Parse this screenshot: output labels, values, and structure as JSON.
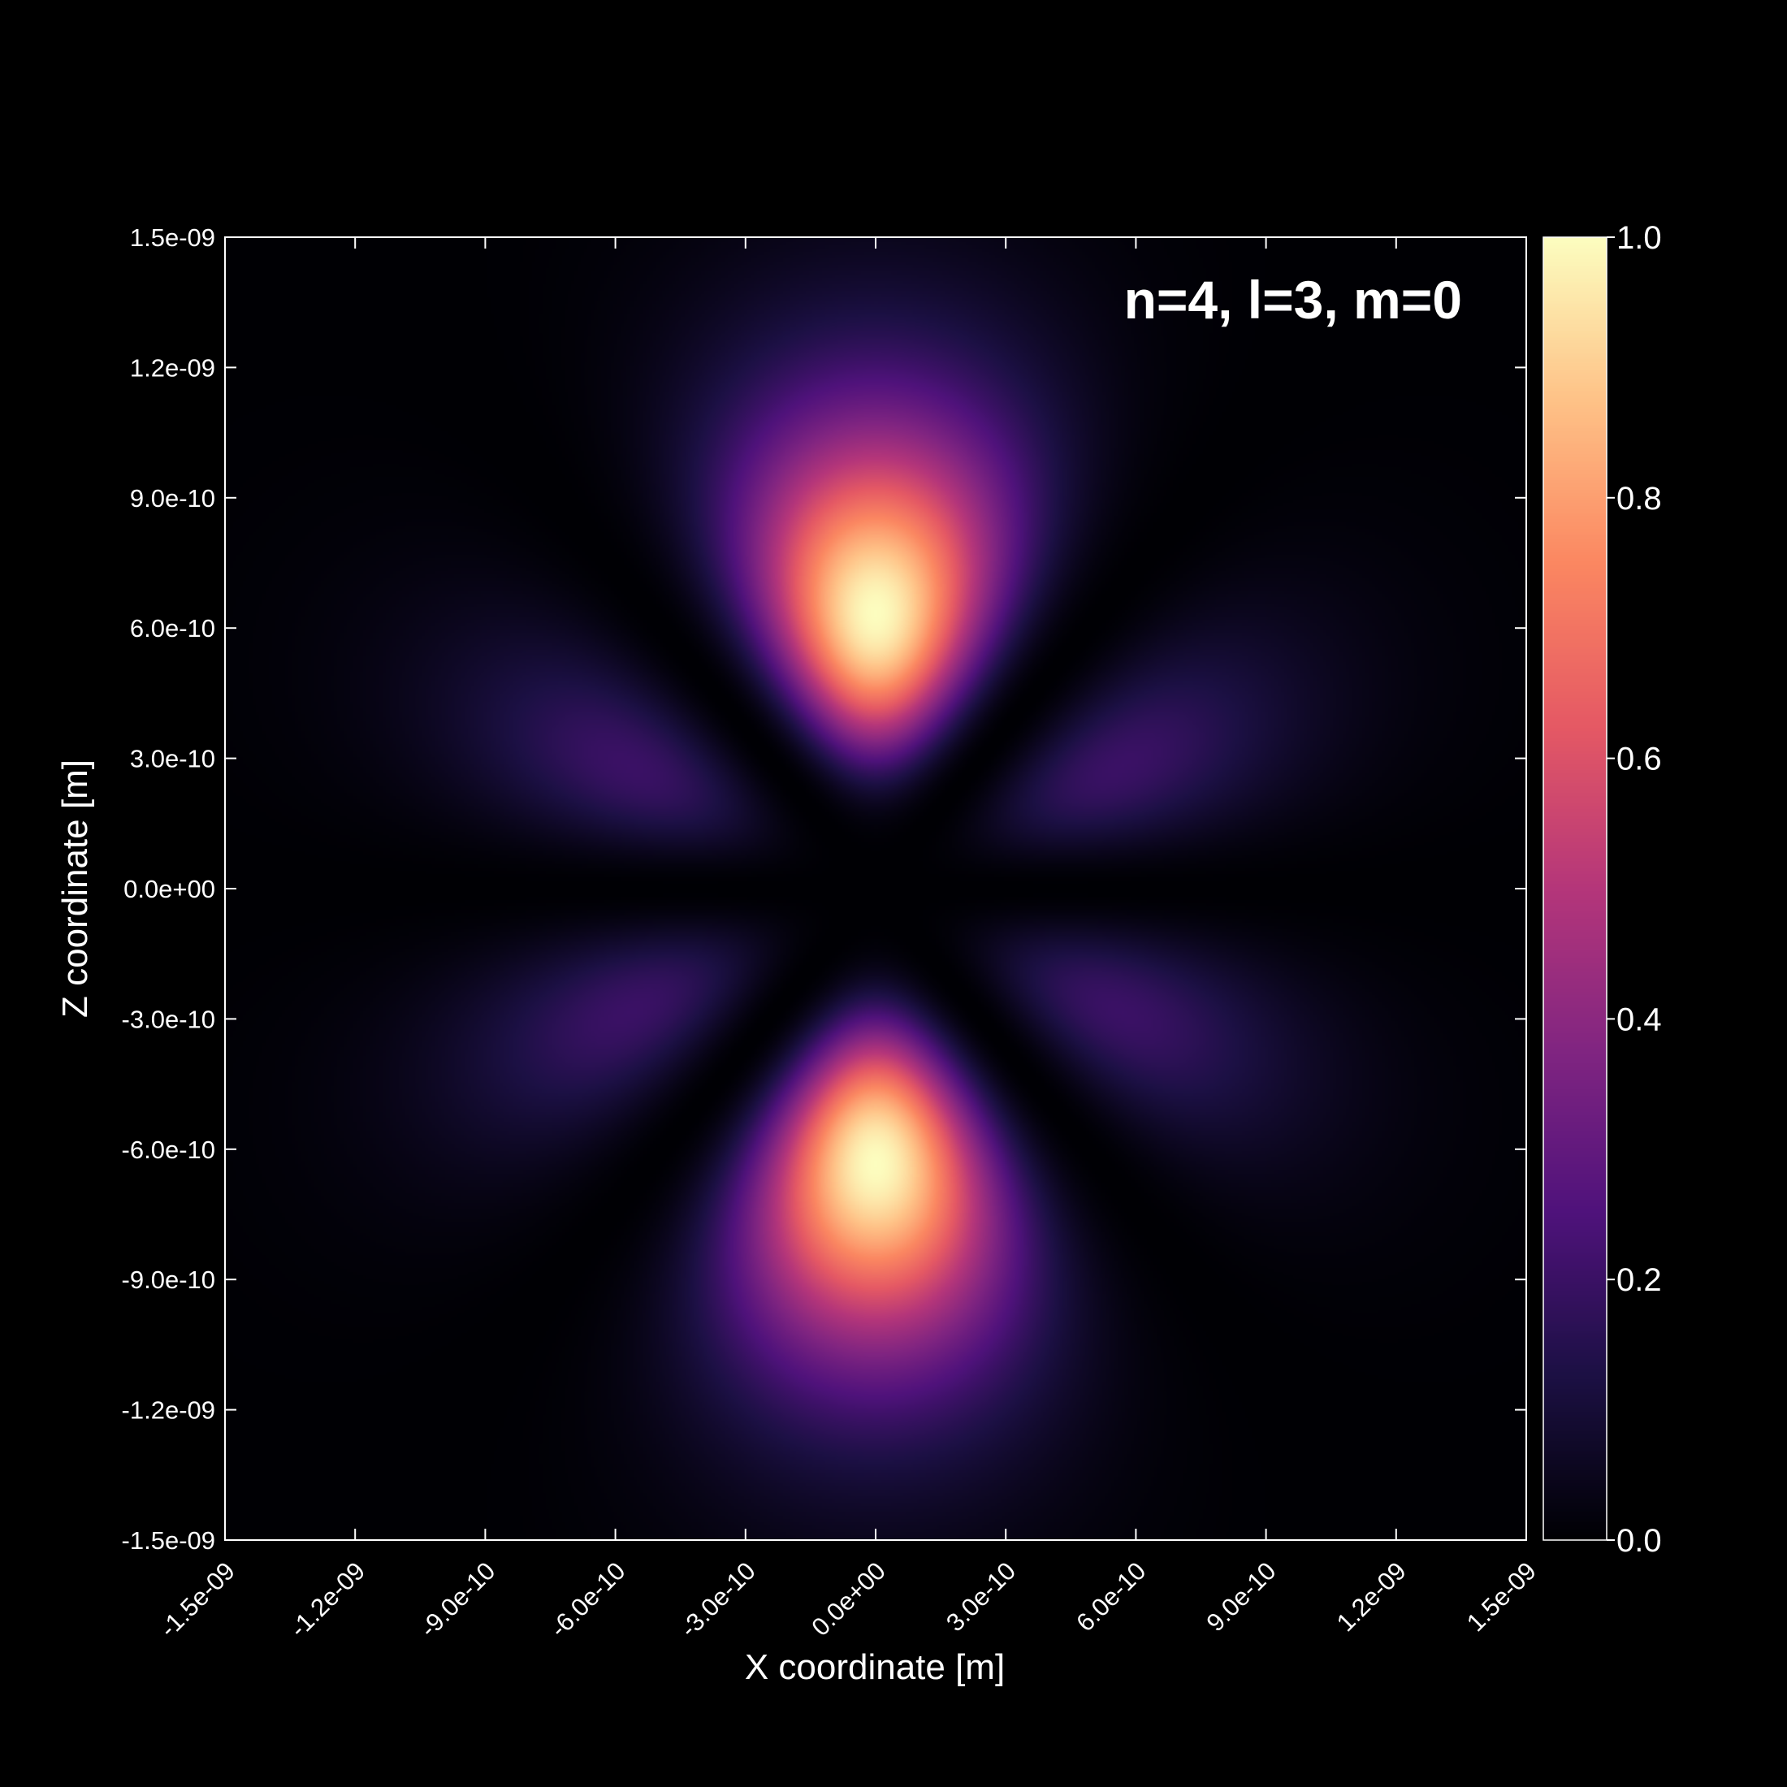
{
  "chart_data": {
    "type": "heatmap",
    "title": "n=4, l=3, m=0",
    "xlabel": "X coordinate [m]",
    "ylabel": "Z coordinate [m]",
    "xlim": [
      -1.5e-09,
      1.5e-09
    ],
    "ylim": [
      -1.5e-09,
      1.5e-09
    ],
    "x_ticks": [
      -1.5e-09,
      -1.2e-09,
      -9e-10,
      -6e-10,
      -3e-10,
      0,
      3e-10,
      6e-10,
      9e-10,
      1.2e-09,
      1.5e-09
    ],
    "x_tick_labels": [
      "-1.5e-09",
      "-1.2e-09",
      "-9.0e-10",
      "-6.0e-10",
      "-3.0e-10",
      "0.0e+00",
      "3.0e-10",
      "6.0e-10",
      "9.0e-10",
      "1.2e-09",
      "1.5e-09"
    ],
    "y_ticks": [
      1.5e-09,
      1.2e-09,
      9e-10,
      6e-10,
      3e-10,
      0,
      -3e-10,
      -6e-10,
      -9e-10,
      -1.2e-09,
      -1.5e-09
    ],
    "y_tick_labels": [
      "1.5e-09",
      "1.2e-09",
      "9.0e-10",
      "6.0e-10",
      "3.0e-10",
      "0.0e+00",
      "-3.0e-10",
      "-6.0e-10",
      "-9.0e-10",
      "-1.2e-09",
      "-1.5e-09"
    ],
    "colorbar": {
      "colormap": "magma",
      "range": [
        0,
        1
      ],
      "ticks": [
        1.0,
        0.8,
        0.6,
        0.4,
        0.2,
        0.0
      ],
      "tick_labels": [
        "1.0",
        "0.8",
        "0.6",
        "0.4",
        "0.2",
        "0.0"
      ]
    },
    "colormap_stops": [
      "#000004",
      "#1c1044",
      "#4f127b",
      "#812581",
      "#b5367a",
      "#e55964",
      "#fb8761",
      "#fec287",
      "#fcfdbf"
    ],
    "grid": false,
    "quantum_numbers": {
      "n": 4,
      "l": 3,
      "m": 0
    },
    "peaks": [
      {
        "x": 0,
        "z": 6.3e-10,
        "value": 1.0
      },
      {
        "x": 0,
        "z": -6.3e-10,
        "value": 1.0
      },
      {
        "x": -6.2e-10,
        "z": 3.2e-10,
        "value": 0.27
      },
      {
        "x": 6.2e-10,
        "z": 3.2e-10,
        "value": 0.27
      },
      {
        "x": -6.2e-10,
        "z": -3.2e-10,
        "value": 0.27
      },
      {
        "x": 6.2e-10,
        "z": -3.2e-10,
        "value": 0.27
      }
    ],
    "colors": {
      "background": "#000000",
      "axis": "#ffffff",
      "text": "#ffffff"
    }
  }
}
